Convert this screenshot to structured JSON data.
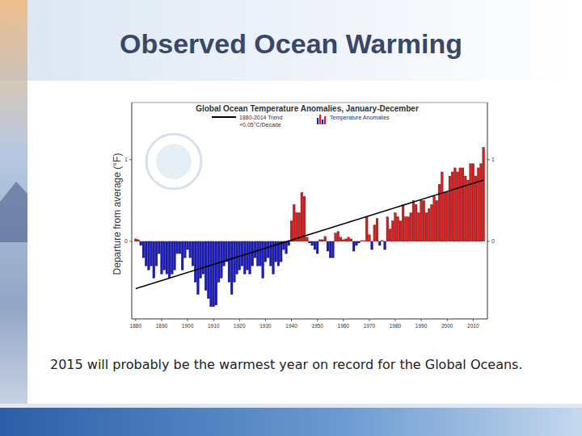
{
  "slide": {
    "title": "Observed Ocean Warming",
    "caption": "2015 will probably be the warmest year on record for the Global Oceans."
  },
  "chart_data": {
    "type": "bar",
    "title": "Global Ocean Temperature Anomalies, January-December",
    "y_label": "Departure from average (°F)",
    "annotations": [
      "+0.05°C/Decade"
    ],
    "legend": "top",
    "grid": false,
    "x": [
      1880,
      1881,
      1882,
      1883,
      1884,
      1885,
      1886,
      1887,
      1888,
      1889,
      1890,
      1891,
      1892,
      1893,
      1894,
      1895,
      1896,
      1897,
      1898,
      1899,
      1900,
      1901,
      1902,
      1903,
      1904,
      1905,
      1906,
      1907,
      1908,
      1909,
      1910,
      1911,
      1912,
      1913,
      1914,
      1915,
      1916,
      1917,
      1918,
      1919,
      1920,
      1921,
      1922,
      1923,
      1924,
      1925,
      1926,
      1927,
      1928,
      1929,
      1930,
      1931,
      1932,
      1933,
      1934,
      1935,
      1936,
      1937,
      1938,
      1939,
      1940,
      1941,
      1942,
      1943,
      1944,
      1945,
      1946,
      1947,
      1948,
      1949,
      1950,
      1951,
      1952,
      1953,
      1954,
      1955,
      1956,
      1957,
      1958,
      1959,
      1960,
      1961,
      1962,
      1963,
      1964,
      1965,
      1966,
      1967,
      1968,
      1969,
      1970,
      1971,
      1972,
      1973,
      1974,
      1975,
      1976,
      1977,
      1978,
      1979,
      1980,
      1981,
      1982,
      1983,
      1984,
      1985,
      1986,
      1987,
      1988,
      1989,
      1990,
      1991,
      1992,
      1993,
      1994,
      1995,
      1996,
      1997,
      1998,
      1999,
      2000,
      2001,
      2002,
      2003,
      2004,
      2005,
      2006,
      2007,
      2008,
      2009,
      2010,
      2011,
      2012,
      2013,
      2014
    ],
    "xlim": [
      1878.5,
      2015.5
    ],
    "xticks": [
      1880,
      1890,
      1900,
      1910,
      1920,
      1930,
      1940,
      1950,
      1960,
      1970,
      1980,
      1990,
      2000,
      2010
    ],
    "ylim": [
      -0.95,
      1.7
    ],
    "yticks": [
      0,
      1
    ],
    "series": [
      {
        "name": "Temperature Anomalies",
        "type": "bar",
        "values": [
          0.03,
          0.02,
          -0.05,
          -0.2,
          -0.3,
          -0.35,
          -0.3,
          -0.45,
          -0.3,
          -0.15,
          -0.4,
          -0.35,
          -0.4,
          -0.45,
          -0.4,
          -0.35,
          -0.15,
          -0.15,
          -0.35,
          -0.2,
          -0.1,
          -0.2,
          -0.3,
          -0.5,
          -0.65,
          -0.45,
          -0.4,
          -0.6,
          -0.7,
          -0.8,
          -0.8,
          -0.78,
          -0.5,
          -0.45,
          -0.3,
          -0.25,
          -0.5,
          -0.65,
          -0.5,
          -0.4,
          -0.35,
          -0.3,
          -0.4,
          -0.35,
          -0.4,
          -0.3,
          -0.2,
          -0.3,
          -0.3,
          -0.45,
          -0.25,
          -0.2,
          -0.3,
          -0.4,
          -0.25,
          -0.3,
          -0.25,
          -0.1,
          -0.15,
          -0.05,
          0.25,
          0.45,
          0.35,
          0.35,
          0.6,
          0.55,
          0.05,
          -0.02,
          -0.05,
          -0.1,
          -0.15,
          0.02,
          0.02,
          0.06,
          -0.12,
          -0.2,
          -0.2,
          0.1,
          0.12,
          0.05,
          0.02,
          0.03,
          0.05,
          0.03,
          -0.12,
          -0.05,
          -0.02,
          0.01,
          0.01,
          0.3,
          0.08,
          -0.1,
          0.2,
          0.28,
          -0.05,
          0.01,
          -0.1,
          0.3,
          0.15,
          0.25,
          0.35,
          0.3,
          0.25,
          0.45,
          0.3,
          0.3,
          0.35,
          0.5,
          0.45,
          0.35,
          0.5,
          0.5,
          0.35,
          0.4,
          0.45,
          0.55,
          0.5,
          0.7,
          0.85,
          0.6,
          0.6,
          0.8,
          0.85,
          0.9,
          0.85,
          0.9,
          0.9,
          0.8,
          0.75,
          0.95,
          0.95,
          0.8,
          0.9,
          0.95,
          1.15
        ],
        "colors": [
          "#e41a1c",
          "#e41a1c",
          "#1a1acc",
          "#1a1acc",
          "#1a1acc",
          "#1a1acc",
          "#1a1acc",
          "#1a1acc",
          "#1a1acc",
          "#1a1acc",
          "#1a1acc",
          "#1a1acc",
          "#1a1acc",
          "#1a1acc",
          "#1a1acc",
          "#1a1acc",
          "#1a1acc",
          "#1a1acc",
          "#1a1acc",
          "#1a1acc",
          "#1a1acc",
          "#1a1acc",
          "#1a1acc",
          "#1a1acc",
          "#1a1acc",
          "#1a1acc",
          "#1a1acc",
          "#1a1acc",
          "#1a1acc",
          "#1a1acc",
          "#1a1acc",
          "#1a1acc",
          "#1a1acc",
          "#1a1acc",
          "#1a1acc",
          "#1a1acc",
          "#1a1acc",
          "#1a1acc",
          "#1a1acc",
          "#1a1acc",
          "#1a1acc",
          "#1a1acc",
          "#1a1acc",
          "#1a1acc",
          "#1a1acc",
          "#1a1acc",
          "#1a1acc",
          "#1a1acc",
          "#1a1acc",
          "#1a1acc",
          "#1a1acc",
          "#1a1acc",
          "#1a1acc",
          "#1a1acc",
          "#1a1acc",
          "#1a1acc",
          "#1a1acc",
          "#1a1acc",
          "#1a1acc",
          "#1a1acc",
          "#e41a1c",
          "#e41a1c",
          "#e41a1c",
          "#e41a1c",
          "#e41a1c",
          "#e41a1c",
          "#e41a1c",
          "#1a1acc",
          "#1a1acc",
          "#1a1acc",
          "#1a1acc",
          "#e41a1c",
          "#e41a1c",
          "#e41a1c",
          "#1a1acc",
          "#1a1acc",
          "#1a1acc",
          "#e41a1c",
          "#e41a1c",
          "#e41a1c",
          "#e41a1c",
          "#e41a1c",
          "#e41a1c",
          "#e41a1c",
          "#1a1acc",
          "#1a1acc",
          "#1a1acc",
          "#e41a1c",
          "#e41a1c",
          "#e41a1c",
          "#e41a1c",
          "#1a1acc",
          "#e41a1c",
          "#e41a1c",
          "#1a1acc",
          "#e41a1c",
          "#1a1acc",
          "#e41a1c",
          "#e41a1c",
          "#e41a1c",
          "#e41a1c",
          "#e41a1c",
          "#e41a1c",
          "#e41a1c",
          "#e41a1c",
          "#e41a1c",
          "#e41a1c",
          "#e41a1c",
          "#e41a1c",
          "#e41a1c",
          "#e41a1c",
          "#e41a1c",
          "#e41a1c",
          "#e41a1c",
          "#e41a1c",
          "#e41a1c",
          "#e41a1c",
          "#e41a1c",
          "#e41a1c",
          "#e41a1c",
          "#e41a1c",
          "#e41a1c",
          "#e41a1c",
          "#e41a1c",
          "#e41a1c",
          "#e41a1c",
          "#e41a1c",
          "#e41a1c",
          "#e41a1c",
          "#e41a1c",
          "#e41a1c",
          "#e41a1c",
          "#e41a1c",
          "#e41a1c",
          "#e41a1c"
        ]
      },
      {
        "name": "1880-2014 Trend",
        "type": "line",
        "color": "#000000",
        "line_style": "solid",
        "x": [
          1880,
          2014
        ],
        "values": [
          -0.58,
          0.75
        ]
      }
    ]
  }
}
